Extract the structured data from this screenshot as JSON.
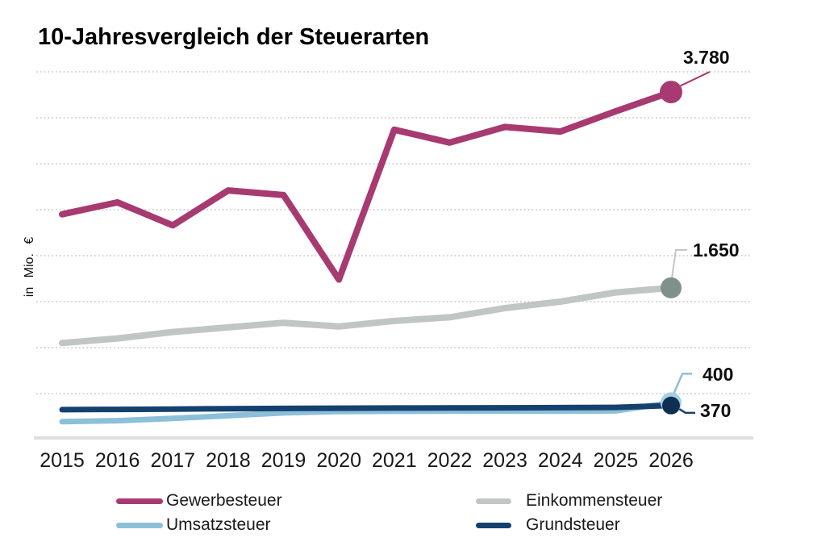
{
  "title": "10-Jahresvergleich der Steuerarten",
  "y_axis_label": "in Mio. €",
  "chart_data": {
    "type": "line",
    "title": "10-Jahresvergleich der Steuerarten",
    "ylabel": "in Mio. €",
    "xlabel": "",
    "categories": [
      "2015",
      "2016",
      "2017",
      "2018",
      "2019",
      "2020",
      "2021",
      "2022",
      "2023",
      "2024",
      "2025",
      "2026"
    ],
    "series": [
      {
        "name": "Gewerbesteuer",
        "color": "#a73a70",
        "marker_color": "#a73a70",
        "end_label": "3.780",
        "end_value": 3780,
        "values": [
          2450,
          2580,
          2330,
          2710,
          2660,
          1740,
          3370,
          3230,
          3400,
          3350,
          3570,
          3780
        ]
      },
      {
        "name": "Einkommensteuer",
        "color": "#c0c6c4",
        "marker_color": "#7e918d",
        "end_label": "1.650",
        "end_value": 1650,
        "values": [
          1050,
          1100,
          1170,
          1220,
          1270,
          1230,
          1290,
          1330,
          1430,
          1500,
          1600,
          1650
        ]
      },
      {
        "name": "Umsatzsteuer",
        "color": "#8cc0d9",
        "marker_color": "#a6cfe1",
        "end_label": "400",
        "end_value": 400,
        "values": [
          195,
          205,
          230,
          260,
          290,
          305,
          308,
          310,
          310,
          310,
          312,
          400
        ]
      },
      {
        "name": "Grundsteuer",
        "color": "#15416f",
        "marker_color": "#0e2e52",
        "end_label": "370",
        "end_value": 370,
        "values": [
          325,
          328,
          332,
          336,
          339,
          341,
          343,
          345,
          346,
          347,
          350,
          370
        ]
      }
    ],
    "ylim": [
      0,
      4000
    ],
    "grid_step": 500,
    "grid": "dotted horizontal lines, no y tick labels",
    "grid_color": "#d6d6d6",
    "axis_line_color": "#dedede",
    "legend_position": "bottom"
  }
}
